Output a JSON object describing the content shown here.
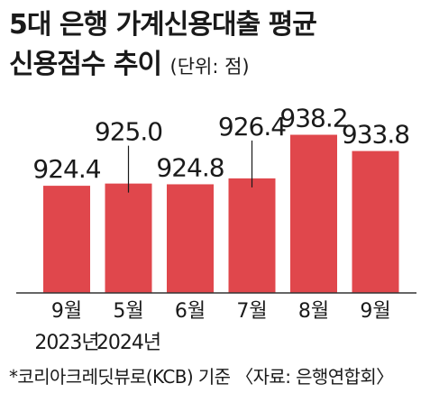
{
  "title": {
    "line1": "5대 은행 가계신용대출 평균",
    "line2": "신용점수 추이",
    "unit": "(단위: 점)"
  },
  "chart_data": {
    "type": "bar",
    "categories": [
      "9월",
      "5월",
      "6월",
      "7월",
      "8월",
      "9월"
    ],
    "year_labels": [
      "2023년",
      "2024년",
      "",
      "",
      "",
      ""
    ],
    "values": [
      924.4,
      925.0,
      924.8,
      926.4,
      938.2,
      933.8
    ],
    "value_labels": [
      "924.4",
      "925.0",
      "924.8",
      "926.4",
      "938.2",
      "933.8"
    ],
    "bar_color": "#e0474c",
    "axis_line_color": "#333333"
  },
  "footnote": "*코리아크레딧뷰로(KCB) 기준 〈자료: 은행연합회〉"
}
